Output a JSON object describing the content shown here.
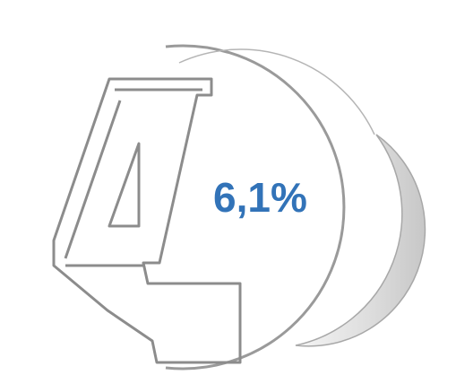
{
  "badge": {
    "value_text": "6,1%",
    "value_color": "#3273b8"
  }
}
